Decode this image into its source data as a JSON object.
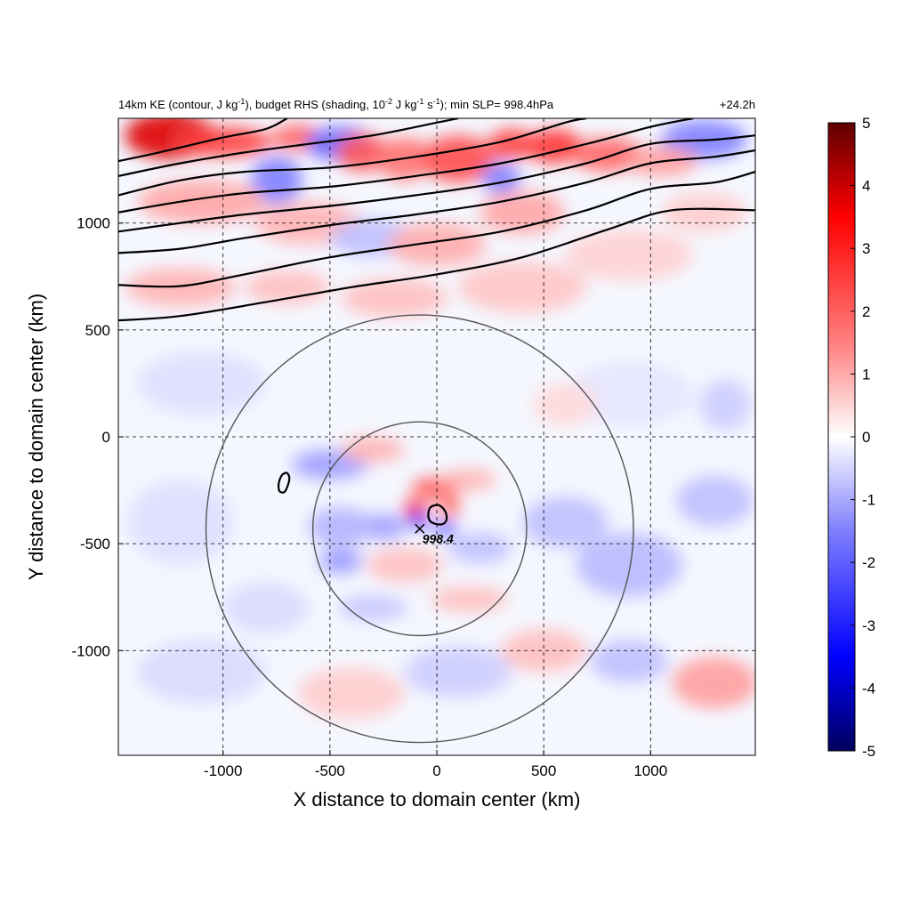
{
  "chart_data": {
    "type": "heatmap",
    "title_parts": {
      "t1": "14km KE (contour, J kg",
      "t1_sup": "-1",
      "t2": "), budget RHS (shading, 10",
      "t2_sup": "-2",
      "t3": " J kg",
      "t3_sup": "-1",
      "t4": " s",
      "t4_sup": "-1",
      "t5": "); min SLP= 998.4hPa"
    },
    "time_label": "+24.2h",
    "xlabel": "X distance to domain center (km)",
    "ylabel": "Y distance to domain center (km)",
    "xlim": [
      -1490,
      1490
    ],
    "ylim": [
      -1490,
      1490
    ],
    "x_ticks": [
      -1000,
      -500,
      0,
      500,
      1000
    ],
    "x_tick_labels": [
      "-1000",
      "-500",
      "0",
      "500",
      "1000"
    ],
    "y_ticks": [
      1000,
      500,
      0,
      -500,
      -1000
    ],
    "y_tick_labels": [
      "1000",
      "500",
      "0",
      "-500",
      "-1000"
    ],
    "grid": true,
    "colorbar": {
      "range": [
        -5,
        5
      ],
      "ticks": [
        5,
        4,
        3,
        2,
        1,
        0,
        -1,
        -2,
        -3,
        -4,
        -5
      ],
      "tick_labels": [
        "5",
        "4",
        "3",
        "2",
        "1",
        "0",
        "-1",
        "-2",
        "-3",
        "-4",
        "-5"
      ],
      "colors": [
        "#00005e",
        "#0000ff",
        "#7f7fff",
        "#ffffff",
        "#ff7f7f",
        "#ff0000",
        "#5e0000"
      ]
    },
    "circles": [
      {
        "center": [
          -80,
          -430
        ],
        "radius": 500
      },
      {
        "center": [
          -80,
          -430
        ],
        "radius": 1000
      }
    ],
    "min_slp": {
      "x": -80,
      "y": -430,
      "label": "998.4"
    },
    "ke_contours": [
      [
        [
          -1490,
          545
        ],
        [
          -1200,
          565
        ],
        [
          -800,
          630
        ],
        [
          -400,
          700
        ],
        [
          0,
          760
        ],
        [
          400,
          840
        ],
        [
          800,
          970
        ],
        [
          1100,
          1060
        ],
        [
          1490,
          1060
        ]
      ],
      [
        [
          -1490,
          710
        ],
        [
          -1200,
          705
        ],
        [
          -900,
          760
        ],
        [
          -500,
          840
        ],
        [
          -100,
          900
        ],
        [
          300,
          960
        ],
        [
          700,
          1060
        ],
        [
          1000,
          1160
        ],
        [
          1300,
          1190
        ],
        [
          1490,
          1240
        ]
      ],
      [
        [
          -1490,
          860
        ],
        [
          -1200,
          880
        ],
        [
          -900,
          930
        ],
        [
          -500,
          990
        ],
        [
          -100,
          1040
        ],
        [
          300,
          1100
        ],
        [
          700,
          1190
        ],
        [
          1000,
          1280
        ],
        [
          1300,
          1310
        ],
        [
          1490,
          1340
        ]
      ],
      [
        [
          -1490,
          960
        ],
        [
          -1200,
          1000
        ],
        [
          -900,
          1040
        ],
        [
          -500,
          1080
        ],
        [
          -100,
          1130
        ],
        [
          300,
          1190
        ],
        [
          700,
          1280
        ],
        [
          1000,
          1370
        ],
        [
          1300,
          1390
        ],
        [
          1490,
          1410
        ]
      ],
      [
        [
          -1490,
          1050
        ],
        [
          -1200,
          1100
        ],
        [
          -900,
          1140
        ],
        [
          -500,
          1170
        ],
        [
          -100,
          1220
        ],
        [
          300,
          1280
        ],
        [
          700,
          1370
        ],
        [
          1000,
          1450
        ],
        [
          1200,
          1490
        ]
      ],
      [
        [
          -1490,
          1130
        ],
        [
          -1200,
          1200
        ],
        [
          -900,
          1240
        ],
        [
          -500,
          1260
        ],
        [
          -100,
          1310
        ],
        [
          300,
          1380
        ],
        [
          600,
          1470
        ],
        [
          700,
          1490
        ]
      ],
      [
        [
          -1490,
          1220
        ],
        [
          -1200,
          1280
        ],
        [
          -900,
          1330
        ],
        [
          -600,
          1370
        ],
        [
          -300,
          1410
        ],
        [
          0,
          1470
        ],
        [
          100,
          1490
        ]
      ],
      [
        [
          -1490,
          1290
        ],
        [
          -1300,
          1330
        ],
        [
          -1000,
          1400
        ],
        [
          -800,
          1440
        ],
        [
          -700,
          1490
        ]
      ]
    ],
    "ke_closed_contours": [
      [
        [
          -725,
          -180
        ],
        [
          -700,
          -170
        ],
        [
          -690,
          -200
        ],
        [
          -710,
          -255
        ],
        [
          -735,
          -255
        ],
        [
          -740,
          -220
        ]
      ],
      [
        [
          -30,
          -330
        ],
        [
          10,
          -320
        ],
        [
          40,
          -350
        ],
        [
          45,
          -390
        ],
        [
          20,
          -410
        ],
        [
          -25,
          -400
        ],
        [
          -40,
          -370
        ]
      ]
    ],
    "shading_blobs": [
      {
        "x": -1250,
        "y": 1410,
        "rx": 210,
        "ry": 110,
        "v": 4.2
      },
      {
        "x": -1000,
        "y": 1380,
        "rx": 230,
        "ry": 70,
        "v": 3.0
      },
      {
        "x": -650,
        "y": 1400,
        "rx": 120,
        "ry": 60,
        "v": 2.5
      },
      {
        "x": -450,
        "y": 1370,
        "rx": 160,
        "ry": 80,
        "v": -2.4
      },
      {
        "x": -750,
        "y": 1200,
        "rx": 120,
        "ry": 110,
        "v": -2.0
      },
      {
        "x": -350,
        "y": 1330,
        "rx": 120,
        "ry": 90,
        "v": 2.6
      },
      {
        "x": -150,
        "y": 1300,
        "rx": 130,
        "ry": 100,
        "v": 2.2
      },
      {
        "x": 100,
        "y": 1300,
        "rx": 170,
        "ry": 110,
        "v": 2.8
      },
      {
        "x": 350,
        "y": 1370,
        "rx": 110,
        "ry": 70,
        "v": 3.0
      },
      {
        "x": 550,
        "y": 1360,
        "rx": 130,
        "ry": 80,
        "v": 3.2
      },
      {
        "x": 300,
        "y": 1210,
        "rx": 90,
        "ry": 70,
        "v": -2.0
      },
      {
        "x": 800,
        "y": 1320,
        "rx": 170,
        "ry": 80,
        "v": 2.4
      },
      {
        "x": 1250,
        "y": 1390,
        "rx": 200,
        "ry": 90,
        "v": -2.0
      },
      {
        "x": 1050,
        "y": 1290,
        "rx": 170,
        "ry": 70,
        "v": 1.5
      },
      {
        "x": -1100,
        "y": 1100,
        "rx": 300,
        "ry": 100,
        "v": 1.4
      },
      {
        "x": -600,
        "y": 1000,
        "rx": 250,
        "ry": 100,
        "v": 1.2
      },
      {
        "x": -300,
        "y": 930,
        "rx": 200,
        "ry": 90,
        "v": -1.0
      },
      {
        "x": 0,
        "y": 900,
        "rx": 230,
        "ry": 100,
        "v": 1.3
      },
      {
        "x": 400,
        "y": 1050,
        "rx": 200,
        "ry": 100,
        "v": 1.4
      },
      {
        "x": -1200,
        "y": 700,
        "rx": 260,
        "ry": 90,
        "v": 1.2
      },
      {
        "x": -700,
        "y": 700,
        "rx": 200,
        "ry": 80,
        "v": 1.0
      },
      {
        "x": -200,
        "y": 650,
        "rx": 250,
        "ry": 90,
        "v": 1.0
      },
      {
        "x": 400,
        "y": 700,
        "rx": 300,
        "ry": 120,
        "v": 0.9
      },
      {
        "x": 900,
        "y": 850,
        "rx": 300,
        "ry": 120,
        "v": 0.7
      },
      {
        "x": 1250,
        "y": 1050,
        "rx": 200,
        "ry": 90,
        "v": 0.8
      },
      {
        "x": 0,
        "y": -240,
        "rx": 120,
        "ry": 50,
        "v": 2.6
      },
      {
        "x": -100,
        "y": -340,
        "rx": 60,
        "ry": 50,
        "v": 3.0
      },
      {
        "x": -90,
        "y": -390,
        "rx": 40,
        "ry": 40,
        "v": -4.0
      },
      {
        "x": 40,
        "y": -430,
        "rx": 55,
        "ry": 30,
        "v": -3.2
      },
      {
        "x": 60,
        "y": -330,
        "rx": 50,
        "ry": 45,
        "v": 2.4
      },
      {
        "x": -250,
        "y": -420,
        "rx": 110,
        "ry": 60,
        "v": -1.5
      },
      {
        "x": -450,
        "y": -420,
        "rx": 150,
        "ry": 90,
        "v": -1.2
      },
      {
        "x": -500,
        "y": -130,
        "rx": 180,
        "ry": 70,
        "v": -1.5
      },
      {
        "x": -300,
        "y": -60,
        "rx": 150,
        "ry": 60,
        "v": 1.2
      },
      {
        "x": 150,
        "y": -200,
        "rx": 130,
        "ry": 50,
        "v": 1.2
      },
      {
        "x": 200,
        "y": -520,
        "rx": 150,
        "ry": 70,
        "v": -1.0
      },
      {
        "x": -150,
        "y": -600,
        "rx": 180,
        "ry": 80,
        "v": 1.0
      },
      {
        "x": -450,
        "y": -580,
        "rx": 100,
        "ry": 60,
        "v": -1.6
      },
      {
        "x": 150,
        "y": -760,
        "rx": 180,
        "ry": 60,
        "v": 1.0
      },
      {
        "x": -300,
        "y": -800,
        "rx": 160,
        "ry": 60,
        "v": -0.9
      },
      {
        "x": 600,
        "y": -400,
        "rx": 200,
        "ry": 120,
        "v": -1.0
      },
      {
        "x": 900,
        "y": -600,
        "rx": 250,
        "ry": 150,
        "v": -1.1
      },
      {
        "x": 1300,
        "y": -300,
        "rx": 180,
        "ry": 120,
        "v": -1.0
      },
      {
        "x": 1300,
        "y": -1150,
        "rx": 200,
        "ry": 120,
        "v": 1.5
      },
      {
        "x": 900,
        "y": -1050,
        "rx": 180,
        "ry": 100,
        "v": -1.0
      },
      {
        "x": 500,
        "y": -1000,
        "rx": 200,
        "ry": 100,
        "v": 1.0
      },
      {
        "x": 100,
        "y": -1100,
        "rx": 250,
        "ry": 120,
        "v": -0.8
      },
      {
        "x": -400,
        "y": -1200,
        "rx": 250,
        "ry": 120,
        "v": 0.8
      },
      {
        "x": -1100,
        "y": -1100,
        "rx": 300,
        "ry": 150,
        "v": -0.6
      },
      {
        "x": -1200,
        "y": -400,
        "rx": 250,
        "ry": 200,
        "v": -0.5
      },
      {
        "x": -1100,
        "y": 250,
        "rx": 300,
        "ry": 150,
        "v": -0.5
      },
      {
        "x": 900,
        "y": 200,
        "rx": 300,
        "ry": 150,
        "v": -0.4
      },
      {
        "x": 600,
        "y": 150,
        "rx": 150,
        "ry": 100,
        "v": 0.6
      },
      {
        "x": 1350,
        "y": 150,
        "rx": 120,
        "ry": 120,
        "v": -0.8
      },
      {
        "x": -800,
        "y": -800,
        "rx": 200,
        "ry": 120,
        "v": -0.6
      }
    ]
  }
}
